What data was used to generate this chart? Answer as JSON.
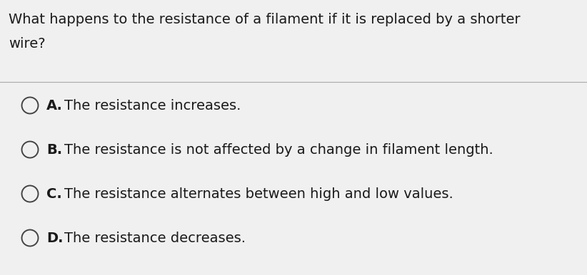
{
  "question_line1": "What happens to the resistance of a filament if it is replaced by a shorter",
  "question_line2": "wire?",
  "options": [
    {
      "label": "A.",
      "text": "The resistance increases."
    },
    {
      "label": "B.",
      "text": "The resistance is not affected by a change in filament length."
    },
    {
      "label": "C.",
      "text": "The resistance alternates between high and low values."
    },
    {
      "label": "D.",
      "text": "The resistance decreases."
    }
  ],
  "bg_color": "#f0f0f0",
  "text_color": "#1a1a1a",
  "circle_edge_color": "#444444",
  "divider_color": "#aaaaaa",
  "question_font_size": 14.0,
  "option_font_size": 14.0,
  "fig_width": 8.22,
  "fig_height": 3.86,
  "dpi": 100
}
